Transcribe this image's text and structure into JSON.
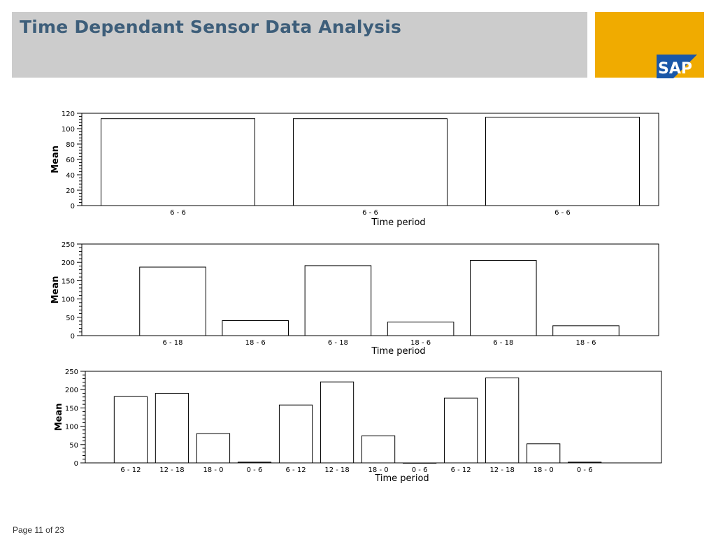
{
  "header": {
    "title": "Time Dependant Sensor Data Analysis",
    "title_color": "#3d5e7a",
    "bar_color": "#cccccc"
  },
  "logo": {
    "text": "SAP",
    "box_color": "#f0ab00",
    "logo_color": "#1a57a8"
  },
  "footer": {
    "page_label": "Page 11 of 23"
  },
  "chart_data": [
    {
      "type": "bar",
      "title": "",
      "ylabel": "Mean",
      "xlabel": "Time period",
      "ylim": [
        0,
        120
      ],
      "yticks": [
        0,
        20,
        40,
        60,
        80,
        100,
        120
      ],
      "categories": [
        "6 - 6",
        "6 - 6",
        "6 - 6"
      ],
      "values": [
        113,
        113,
        115
      ]
    },
    {
      "type": "bar",
      "title": "",
      "ylabel": "Mean",
      "xlabel": "Time period",
      "ylim": [
        0,
        250
      ],
      "yticks": [
        0,
        50,
        100,
        150,
        200,
        250
      ],
      "categories": [
        "6 - 18",
        "18 - 6",
        "6 - 18",
        "18 - 6",
        "6 - 18",
        "18 - 6"
      ],
      "values": [
        187,
        41,
        191,
        37,
        205,
        27
      ]
    },
    {
      "type": "bar",
      "title": "",
      "ylabel": "Mean",
      "xlabel": "Time period",
      "ylim": [
        0,
        250
      ],
      "yticks": [
        0,
        50,
        100,
        150,
        200,
        250
      ],
      "categories": [
        "6 - 12",
        "12 - 18",
        "18 - 0",
        "0 - 6",
        "6 - 12",
        "12 - 18",
        "18 - 0",
        "0 - 6",
        "6 - 12",
        "12 - 18",
        "18 - 0",
        "0 - 6"
      ],
      "values": [
        181,
        190,
        80,
        2,
        158,
        221,
        74,
        0,
        177,
        232,
        52,
        2
      ]
    }
  ]
}
